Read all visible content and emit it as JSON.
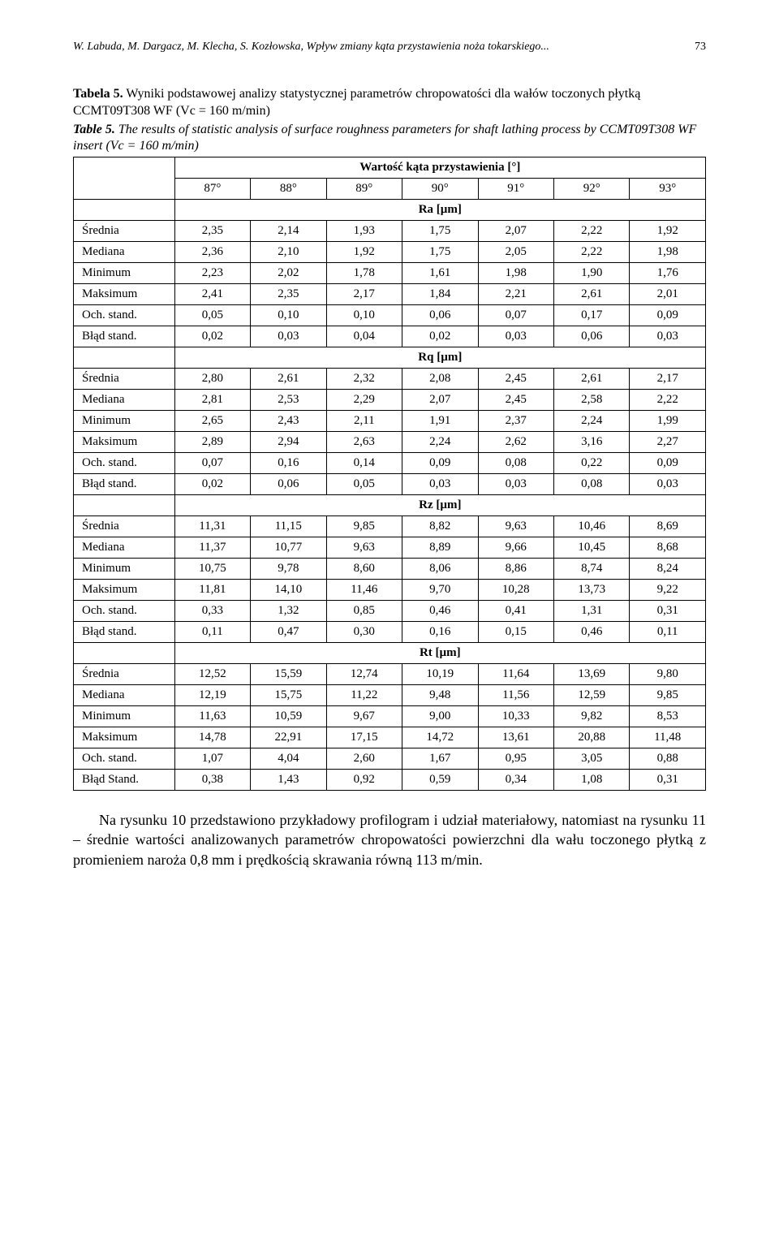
{
  "header": {
    "authors_title": "W. Labuda, M. Dargacz, M. Klecha, S. Kozłowska, Wpływ zmiany kąta przystawienia noża tokarskiego...",
    "page_number": "73"
  },
  "captions": {
    "tabela_label": "Tabela 5.",
    "tabela_text": "Wyniki podstawowej analizy statystycznej parametrów chropowatości dla wałów toczonych płytką CCMT09T308 WF (Vc = 160 m/min)",
    "table_label": "Table 5.",
    "table_text": "The results of statistic analysis of surface roughness parameters for shaft lathing process by CCMT09T308 WF insert (Vc = 160 m/min)"
  },
  "table": {
    "type": "table",
    "background_color": "#ffffff",
    "border_color": "#000000",
    "font_size_pt": 11,
    "header_angle_title": "Wartość kąta przystawienia [°]",
    "angle_labels": [
      "87°",
      "88°",
      "89°",
      "90°",
      "91°",
      "92°",
      "93°"
    ],
    "column_widths_pct": [
      16,
      12,
      12,
      12,
      12,
      12,
      12,
      12
    ],
    "row_labels": [
      "Średnia",
      "Mediana",
      "Minimum",
      "Maksimum",
      "Och. stand.",
      "Błąd stand."
    ],
    "row_labels_rt_last": "Błąd Stand.",
    "sections": [
      {
        "title": "Ra [µm]",
        "rows": [
          [
            "2,35",
            "2,14",
            "1,93",
            "1,75",
            "2,07",
            "2,22",
            "1,92"
          ],
          [
            "2,36",
            "2,10",
            "1,92",
            "1,75",
            "2,05",
            "2,22",
            "1,98"
          ],
          [
            "2,23",
            "2,02",
            "1,78",
            "1,61",
            "1,98",
            "1,90",
            "1,76"
          ],
          [
            "2,41",
            "2,35",
            "2,17",
            "1,84",
            "2,21",
            "2,61",
            "2,01"
          ],
          [
            "0,05",
            "0,10",
            "0,10",
            "0,06",
            "0,07",
            "0,17",
            "0,09"
          ],
          [
            "0,02",
            "0,03",
            "0,04",
            "0,02",
            "0,03",
            "0,06",
            "0,03"
          ]
        ]
      },
      {
        "title": "Rq [µm]",
        "rows": [
          [
            "2,80",
            "2,61",
            "2,32",
            "2,08",
            "2,45",
            "2,61",
            "2,17"
          ],
          [
            "2,81",
            "2,53",
            "2,29",
            "2,07",
            "2,45",
            "2,58",
            "2,22"
          ],
          [
            "2,65",
            "2,43",
            "2,11",
            "1,91",
            "2,37",
            "2,24",
            "1,99"
          ],
          [
            "2,89",
            "2,94",
            "2,63",
            "2,24",
            "2,62",
            "3,16",
            "2,27"
          ],
          [
            "0,07",
            "0,16",
            "0,14",
            "0,09",
            "0,08",
            "0,22",
            "0,09"
          ],
          [
            "0,02",
            "0,06",
            "0,05",
            "0,03",
            "0,03",
            "0,08",
            "0,03"
          ]
        ]
      },
      {
        "title": "Rz [µm]",
        "rows": [
          [
            "11,31",
            "11,15",
            "9,85",
            "8,82",
            "9,63",
            "10,46",
            "8,69"
          ],
          [
            "11,37",
            "10,77",
            "9,63",
            "8,89",
            "9,66",
            "10,45",
            "8,68"
          ],
          [
            "10,75",
            "9,78",
            "8,60",
            "8,06",
            "8,86",
            "8,74",
            "8,24"
          ],
          [
            "11,81",
            "14,10",
            "11,46",
            "9,70",
            "10,28",
            "13,73",
            "9,22"
          ],
          [
            "0,33",
            "1,32",
            "0,85",
            "0,46",
            "0,41",
            "1,31",
            "0,31"
          ],
          [
            "0,11",
            "0,47",
            "0,30",
            "0,16",
            "0,15",
            "0,46",
            "0,11"
          ]
        ]
      },
      {
        "title": "Rt [µm]",
        "rows": [
          [
            "12,52",
            "15,59",
            "12,74",
            "10,19",
            "11,64",
            "13,69",
            "9,80"
          ],
          [
            "12,19",
            "15,75",
            "11,22",
            "9,48",
            "11,56",
            "12,59",
            "9,85"
          ],
          [
            "11,63",
            "10,59",
            "9,67",
            "9,00",
            "10,33",
            "9,82",
            "8,53"
          ],
          [
            "14,78",
            "22,91",
            "17,15",
            "14,72",
            "13,61",
            "20,88",
            "11,48"
          ],
          [
            "1,07",
            "4,04",
            "2,60",
            "1,67",
            "0,95",
            "3,05",
            "0,88"
          ],
          [
            "0,38",
            "1,43",
            "0,92",
            "0,59",
            "0,34",
            "1,08",
            "0,31"
          ]
        ]
      }
    ]
  },
  "body_paragraph": "Na rysunku 10 przedstawiono przykładowy profilogram i udział materiałowy, natomiast na rysunku 11 – średnie wartości analizowanych parametrów chropowatości powierzchni dla wału toczonego płytką z promieniem naroża 0,8 mm i prędkością skrawania równą 113 m/min."
}
